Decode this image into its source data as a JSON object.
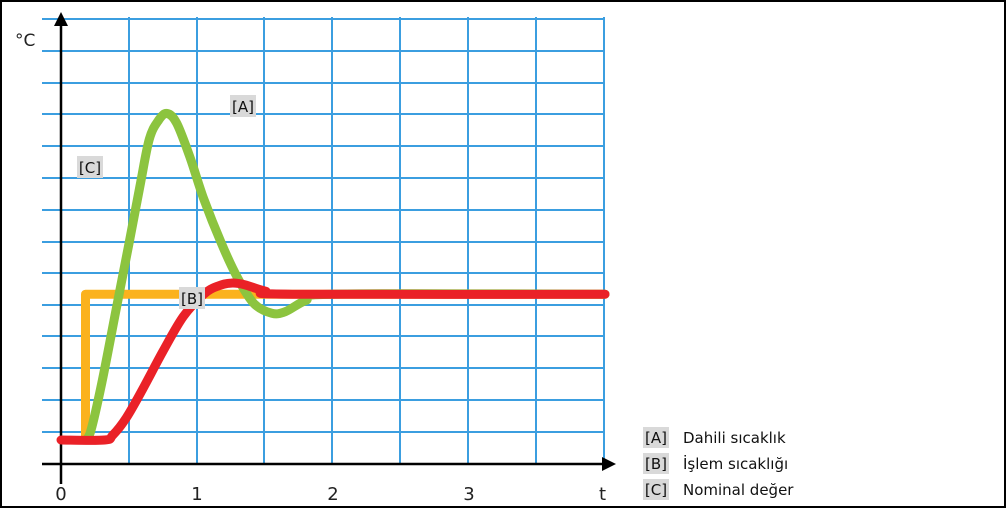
{
  "chart_data": {
    "type": "line",
    "xlabel": "t",
    "ylabel": "°C",
    "x_ticks": [
      "0",
      "1",
      "2",
      "3"
    ],
    "xlim": [
      0,
      4
    ],
    "grid": true,
    "colors": {
      "A": "#8cc43f",
      "B": "#ea2127",
      "C": "#fbb21d",
      "grid": "#3b9ee0",
      "axis": "#000000"
    },
    "series": [
      {
        "name": "[A]",
        "color": "#8cc43f",
        "points": [
          [
            0.18,
            0
          ],
          [
            0.22,
            0.3
          ],
          [
            0.3,
            1.8
          ],
          [
            0.4,
            4.0
          ],
          [
            0.5,
            6.2
          ],
          [
            0.58,
            8.0
          ],
          [
            0.65,
            9.5
          ],
          [
            0.72,
            10.1
          ],
          [
            0.78,
            10.3
          ],
          [
            0.85,
            10.0
          ],
          [
            0.95,
            8.9
          ],
          [
            1.05,
            7.6
          ],
          [
            1.18,
            6.2
          ],
          [
            1.3,
            5.1
          ],
          [
            1.42,
            4.3
          ],
          [
            1.55,
            4.0
          ],
          [
            1.65,
            4.05
          ],
          [
            1.8,
            4.4
          ],
          [
            2.0,
            4.6
          ],
          [
            4.0,
            4.6
          ]
        ]
      },
      {
        "name": "[B]",
        "color": "#ea2127",
        "points": [
          [
            0,
            0
          ],
          [
            0.32,
            0
          ],
          [
            0.38,
            0.15
          ],
          [
            0.48,
            0.7
          ],
          [
            0.6,
            1.6
          ],
          [
            0.75,
            2.8
          ],
          [
            0.9,
            3.9
          ],
          [
            1.05,
            4.6
          ],
          [
            1.15,
            4.85
          ],
          [
            1.25,
            4.95
          ],
          [
            1.35,
            4.9
          ],
          [
            1.5,
            4.7
          ],
          [
            1.7,
            4.6
          ],
          [
            4.0,
            4.6
          ]
        ]
      },
      {
        "name": "[C]",
        "color": "#fbb21d",
        "points": [
          [
            0.18,
            0
          ],
          [
            0.18,
            4.6
          ],
          [
            4.0,
            4.6
          ]
        ]
      }
    ],
    "legend": [
      {
        "key": "[A]",
        "label": "Dahili sıcaklık"
      },
      {
        "key": "[B]",
        "label": "İşlem sıcaklığı"
      },
      {
        "key": "[C]",
        "label": "Nominal değer"
      }
    ],
    "legend_position": "bottom-right"
  }
}
